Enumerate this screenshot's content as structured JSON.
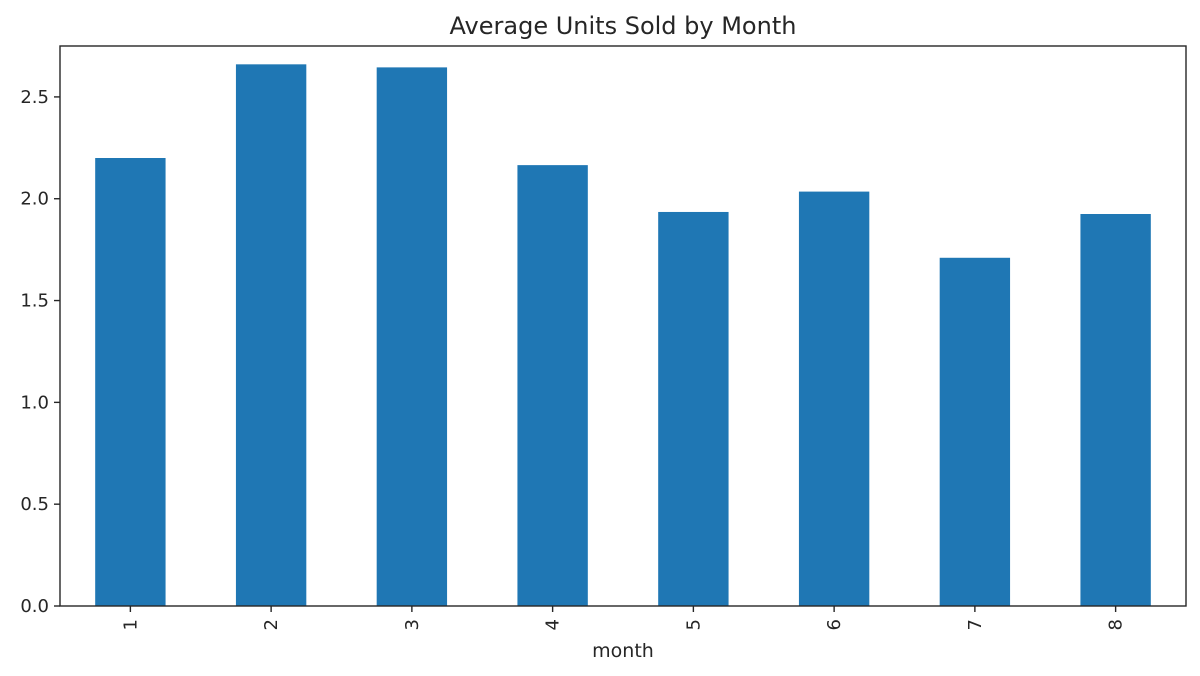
{
  "chart_data": {
    "type": "bar",
    "title": "Average Units Sold by Month",
    "xlabel": "month",
    "ylabel": "",
    "categories": [
      "1",
      "2",
      "3",
      "4",
      "5",
      "6",
      "7",
      "8"
    ],
    "values": [
      2.2,
      2.66,
      2.645,
      2.165,
      1.935,
      2.035,
      1.71,
      1.925
    ],
    "ylim": [
      0,
      2.75
    ],
    "yticks": [
      "0.0",
      "0.5",
      "1.0",
      "1.5",
      "2.0",
      "2.5"
    ],
    "grid": false,
    "legend": "none",
    "colors": {
      "bar": "#1f77b4"
    }
  }
}
